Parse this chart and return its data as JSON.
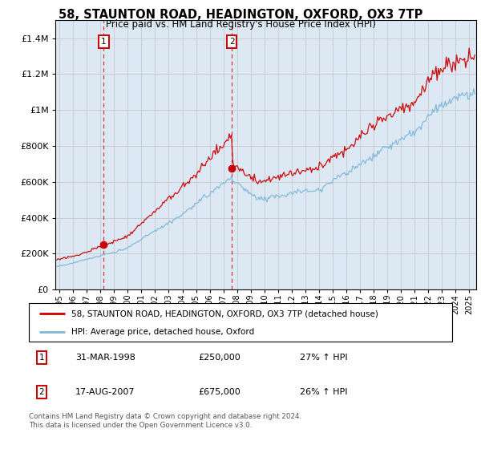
{
  "title": "58, STAUNTON ROAD, HEADINGTON, OXFORD, OX3 7TP",
  "subtitle": "Price paid vs. HM Land Registry's House Price Index (HPI)",
  "legend_line1": "58, STAUNTON ROAD, HEADINGTON, OXFORD, OX3 7TP (detached house)",
  "legend_line2": "HPI: Average price, detached house, Oxford",
  "sale1_date": "31-MAR-1998",
  "sale1_price": "£250,000",
  "sale1_hpi": "27% ↑ HPI",
  "sale2_date": "17-AUG-2007",
  "sale2_price": "£675,000",
  "sale2_hpi": "26% ↑ HPI",
  "footer": "Contains HM Land Registry data © Crown copyright and database right 2024.\nThis data is licensed under the Open Government Licence v3.0.",
  "hpi_color": "#7fb8d8",
  "price_color": "#cc0000",
  "vline_color": "#cc0000",
  "background_color": "#dce9f5",
  "plot_bg": "#ffffff",
  "grid_color": "#c8c8c8",
  "sale1_year": 1998.24,
  "sale1_price_val": 250000,
  "sale2_year": 2007.62,
  "sale2_price_val": 675000,
  "ylim_max": 1500000,
  "xlim_min": 1994.7,
  "xlim_max": 2025.5
}
